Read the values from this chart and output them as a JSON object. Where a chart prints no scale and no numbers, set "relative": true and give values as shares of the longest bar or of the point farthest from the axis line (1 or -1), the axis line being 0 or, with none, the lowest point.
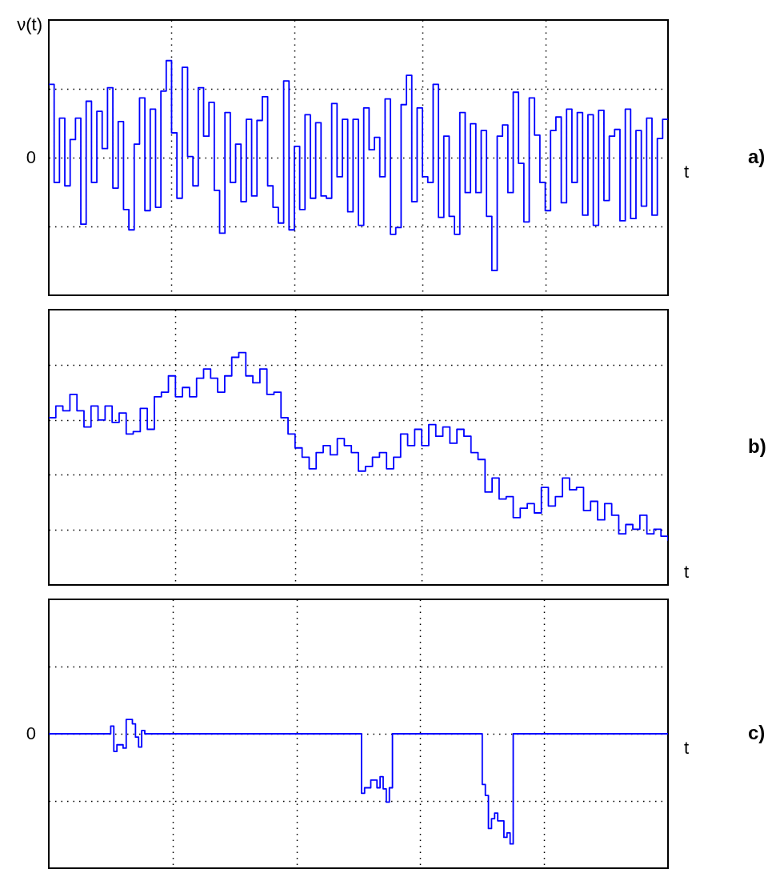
{
  "chart_data": [
    {
      "type": "step",
      "ylabel": "ν(t)",
      "xlabel": "t",
      "annotations": [
        "0",
        "a)"
      ],
      "relative": true,
      "grid": true,
      "categories": [
        null,
        null,
        null,
        null,
        null,
        null,
        null,
        null,
        null,
        null,
        null,
        null,
        null,
        null,
        null,
        null,
        null,
        null,
        null,
        null,
        null,
        null,
        null,
        null,
        null,
        null,
        null,
        null,
        null,
        null,
        null,
        null,
        null,
        null,
        null,
        null,
        null,
        null,
        null,
        null,
        null,
        null,
        null,
        null,
        null,
        null,
        null,
        null,
        null,
        null,
        null,
        null,
        null,
        null,
        null,
        null,
        null,
        null,
        null,
        null,
        null,
        null,
        null,
        null,
        null,
        null,
        null,
        null,
        null,
        null,
        null,
        null,
        null,
        null,
        null,
        null,
        null,
        null,
        null,
        null,
        null,
        null,
        null,
        null,
        null,
        null,
        null,
        null,
        null,
        null,
        null,
        null,
        null,
        null,
        null,
        null,
        null,
        null,
        null,
        null,
        null,
        null,
        null,
        null,
        null,
        null,
        null,
        null,
        null,
        null,
        null,
        null,
        null,
        null,
        null,
        null,
        null
      ],
      "series": [
        {
          "color": "#0000ff",
          "values": [
            0.65,
            -0.22,
            0.35,
            -0.25,
            0.16,
            0.35,
            -0.59,
            0.5,
            -0.22,
            0.41,
            0.08,
            0.62,
            -0.27,
            0.32,
            -0.46,
            -0.64,
            0.12,
            0.53,
            -0.47,
            0.43,
            -0.44,
            0.59,
            0.86,
            0.22,
            -0.36,
            0.8,
            0.01,
            -0.25,
            0.62,
            0.19,
            0.49,
            -0.29,
            -0.67,
            0.4,
            -0.22,
            0.12,
            -0.39,
            0.34,
            -0.34,
            0.33,
            0.54,
            -0.25,
            -0.44,
            -0.58,
            0.68,
            -0.64,
            0.1,
            -0.46,
            0.38,
            -0.36,
            0.31,
            -0.34,
            -0.36,
            0.48,
            -0.17,
            0.34,
            -0.48,
            0.34,
            -0.6,
            0.44,
            0.07,
            0.18,
            -0.17,
            0.52,
            -0.68,
            -0.62,
            0.47,
            0.73,
            -0.39,
            0.44,
            -0.17,
            -0.22,
            0.65,
            -0.53,
            0.19,
            -0.52,
            -0.68,
            0.4,
            -0.31,
            0.3,
            -0.31,
            0.24,
            -0.52,
            -1,
            0.19,
            0.29,
            -0.31,
            0.58,
            -0.05,
            -0.57,
            0.53,
            0.2,
            -0.22,
            -0.47,
            0.24,
            0.36,
            -0.4,
            0.43,
            -0.22,
            0.4,
            -0.51,
            0.38,
            -0.6,
            0.42,
            -0.38,
            0.19,
            0.25,
            -0.56,
            0.43,
            -0.54,
            0.24,
            -0.43,
            0.35,
            -0.51,
            0.17,
            0.34,
            0.34
          ]
        }
      ]
    },
    {
      "type": "step",
      "xlabel": "t",
      "annotations": [
        "b)"
      ],
      "relative": true,
      "grid": true,
      "categories": [
        null,
        null,
        null,
        null,
        null,
        null,
        null,
        null,
        null,
        null,
        null,
        null,
        null,
        null,
        null,
        null,
        null,
        null,
        null,
        null,
        null,
        null,
        null,
        null,
        null,
        null,
        null,
        null,
        null,
        null,
        null,
        null,
        null,
        null,
        null,
        null,
        null,
        null,
        null,
        null,
        null,
        null,
        null,
        null,
        null,
        null,
        null,
        null,
        null,
        null,
        null,
        null,
        null,
        null,
        null,
        null,
        null,
        null,
        null,
        null,
        null,
        null,
        null,
        null,
        null,
        null,
        null,
        null,
        null,
        null,
        null,
        null,
        null,
        null,
        null,
        null,
        null,
        null,
        null,
        null,
        null,
        null,
        null,
        null,
        null,
        null,
        null,
        null,
        null
      ],
      "series": [
        {
          "color": "#0000ff",
          "values": [
            0.72,
            0.77,
            0.75,
            0.82,
            0.75,
            0.68,
            0.77,
            0.71,
            0.77,
            0.7,
            0.74,
            0.65,
            0.66,
            0.76,
            0.67,
            0.81,
            0.83,
            0.9,
            0.81,
            0.85,
            0.81,
            0.89,
            0.93,
            0.89,
            0.83,
            0.9,
            0.98,
            1,
            0.9,
            0.87,
            0.93,
            0.82,
            0.83,
            0.72,
            0.65,
            0.59,
            0.55,
            0.5,
            0.57,
            0.6,
            0.56,
            0.63,
            0.6,
            0.57,
            0.49,
            0.51,
            0.55,
            0.57,
            0.5,
            0.55,
            0.65,
            0.6,
            0.67,
            0.6,
            0.69,
            0.64,
            0.68,
            0.61,
            0.67,
            0.64,
            0.57,
            0.54,
            0.4,
            0.46,
            0.37,
            0.38,
            0.29,
            0.33,
            0.35,
            0.31,
            0.42,
            0.34,
            0.38,
            0.46,
            0.41,
            0.42,
            0.32,
            0.36,
            0.28,
            0.35,
            0.3,
            0.22,
            0.26,
            0.24,
            0.3,
            0.22,
            0.24,
            0.21,
            0.19
          ]
        }
      ]
    },
    {
      "type": "step",
      "xlabel": "t",
      "annotations": [
        "0",
        "c)"
      ],
      "relative": true,
      "grid": true,
      "categories": [
        null,
        null,
        null,
        null,
        null,
        null,
        null,
        null,
        null,
        null,
        null,
        null,
        null,
        null,
        null,
        null,
        null,
        null,
        null,
        null,
        null,
        null,
        null,
        null,
        null,
        null,
        null,
        null,
        null,
        null,
        null,
        null,
        null,
        null,
        null,
        null,
        null,
        null,
        null,
        null,
        null,
        null,
        null,
        null,
        null,
        null,
        null,
        null,
        null,
        null,
        null,
        null,
        null,
        null,
        null,
        null,
        null,
        null,
        null,
        null,
        null,
        null,
        null,
        null,
        null,
        null,
        null,
        null,
        null,
        null,
        null,
        null,
        null,
        null,
        null,
        null,
        null,
        null,
        null,
        null,
        null,
        null,
        null,
        null,
        null,
        null,
        null,
        null,
        null,
        null,
        null,
        null,
        null,
        null,
        null,
        null,
        null,
        null,
        null,
        null,
        null,
        null,
        null,
        null,
        null,
        null,
        null,
        null,
        null,
        null,
        null,
        null,
        null,
        null,
        null,
        null,
        null,
        null,
        null,
        null,
        null,
        null,
        null,
        null,
        null,
        null,
        null,
        null,
        null,
        null,
        null,
        null,
        null,
        null,
        null,
        null,
        null,
        null,
        null,
        null,
        null,
        null,
        null,
        null,
        null,
        null,
        null,
        null,
        null,
        null,
        null,
        null,
        null,
        null,
        null,
        null,
        null,
        null,
        null,
        null,
        null,
        null,
        null,
        null,
        null,
        null,
        null,
        null,
        null,
        null,
        null,
        null,
        null,
        null,
        null,
        null,
        null,
        null,
        null,
        null,
        null,
        null,
        null,
        null,
        null,
        null,
        null,
        null,
        null,
        null,
        null,
        null,
        null,
        null,
        null,
        null,
        null,
        null,
        null,
        null,
        null
      ],
      "series": [
        {
          "color": "#0000ff",
          "values": [
            0,
            0,
            0,
            0,
            0,
            0,
            0,
            0,
            0,
            0,
            0,
            0,
            0,
            0,
            0,
            0,
            0,
            0,
            0,
            0,
            0.07,
            -0.16,
            -0.1,
            -0.1,
            -0.13,
            0.13,
            0.13,
            0.09,
            -0.03,
            -0.12,
            0.03,
            0,
            0,
            0,
            0,
            0,
            0,
            0,
            0,
            0,
            0,
            0,
            0,
            0,
            0,
            0,
            0,
            0,
            0,
            0,
            0,
            0,
            0,
            0,
            0,
            0,
            0,
            0,
            0,
            0,
            0,
            0,
            0,
            0,
            0,
            0,
            0,
            0,
            0,
            0,
            0,
            0,
            0,
            0,
            0,
            0,
            0,
            0,
            0,
            0,
            0,
            0,
            0,
            0,
            0,
            0,
            0,
            0,
            0,
            0,
            0,
            0,
            0,
            0,
            0,
            0,
            0,
            0,
            0,
            0,
            0,
            -0.54,
            -0.49,
            -0.49,
            -0.42,
            -0.42,
            -0.49,
            -0.39,
            -0.5,
            -0.62,
            -0.49,
            0,
            0,
            0,
            0,
            0,
            0,
            0,
            0,
            0,
            0,
            0,
            0,
            0,
            0,
            0,
            0,
            0,
            0,
            0,
            0,
            0,
            0,
            0,
            0,
            0,
            0,
            0,
            0,
            0,
            -0.46,
            -0.56,
            -0.86,
            -0.77,
            -0.72,
            -0.79,
            -0.79,
            -0.94,
            -0.9,
            -1,
            0,
            0,
            0,
            0,
            0,
            0,
            0,
            0,
            0,
            0,
            0,
            0,
            0,
            0,
            0,
            0,
            0,
            0,
            0,
            0,
            0,
            0,
            0,
            0,
            0,
            0,
            0,
            0,
            0,
            0,
            0,
            0,
            0,
            0,
            0,
            0,
            0,
            0,
            0,
            0,
            0,
            0,
            0,
            0,
            0,
            0,
            0,
            0,
            0,
            0,
            0
          ]
        }
      ]
    }
  ]
}
